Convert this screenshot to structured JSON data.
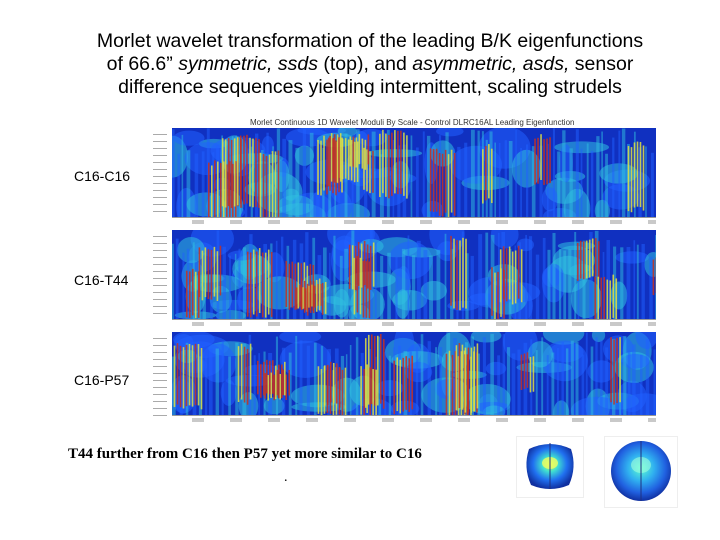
{
  "title": {
    "line1": "Morlet wavelet transformation of the leading B/K eigenfunctions",
    "line2_a": "of 66.6” ",
    "line2_b": "symmetric, ssds",
    "line2_c": " (top), and ",
    "line2_d": "asymmetric, asds,",
    "line2_e": " sensor",
    "line3": "difference sequences yielding intermittent, scaling strudels"
  },
  "panel_title": "Morlet Continuous 1D Wavelet Moduli By Scale - Control DLRC16AL Leading Eigenfunction",
  "panels": [
    {
      "label": "C16-C16"
    },
    {
      "label": "C16-T44"
    },
    {
      "label": "C16-P57"
    }
  ],
  "caption": "T44 further from C16 then P57 yet more similar to C16",
  "caption_dot": ".",
  "colors": {
    "deep_blue": "#1030c0",
    "blue": "#2060ff",
    "cyan": "#30c0e0",
    "yellow": "#e0e040",
    "red": "#c83020"
  }
}
